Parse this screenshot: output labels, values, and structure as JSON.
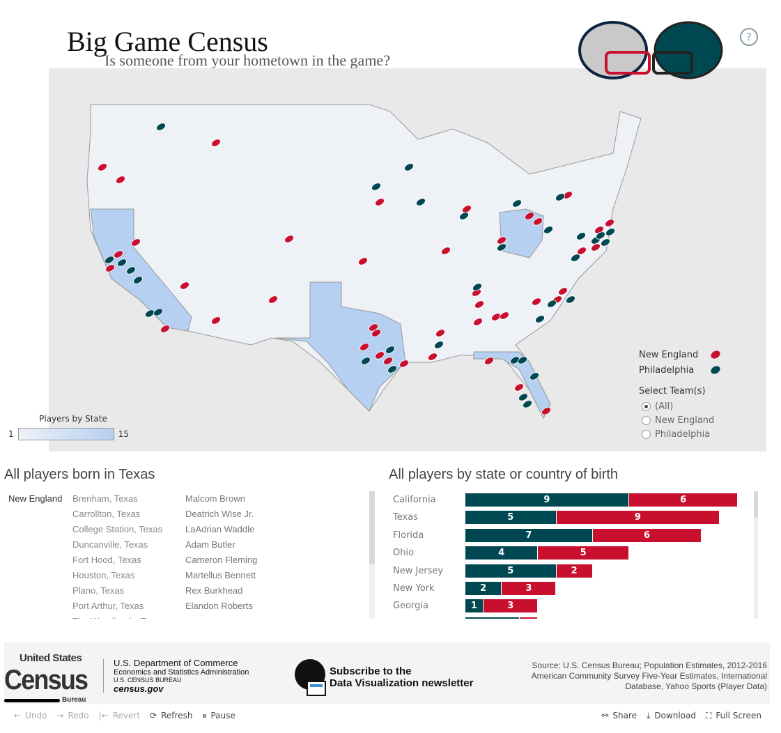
{
  "header": {
    "title": "Big Game Census",
    "subtitle": "Is someone from your hometown in the game?",
    "help_icon": "question-circle-icon"
  },
  "colors": {
    "new_england": "#C8102E",
    "philadelphia": "#004851",
    "state_low": "#eef1f6",
    "state_high": "#b5d0f0",
    "map_bg": "#e9e9e9"
  },
  "map": {
    "legend": {
      "title": "Players by State",
      "min": "1",
      "max": "15"
    },
    "team_legend": [
      {
        "label": "New England",
        "icon": "football-red-icon"
      },
      {
        "label": "Philadelphia",
        "icon": "football-teal-icon"
      }
    ],
    "filter": {
      "title": "Select Team(s)",
      "options": [
        {
          "label": "(All)",
          "selected": true
        },
        {
          "label": "New England",
          "selected": false
        },
        {
          "label": "Philadelphia",
          "selected": false
        }
      ]
    }
  },
  "texas": {
    "title": "All players born in Texas",
    "team": "New England",
    "rows": [
      {
        "town": "Brenham, Texas",
        "player": "Malcom Brown"
      },
      {
        "town": "Carrollton, Texas",
        "player": "Deatrich Wise Jr."
      },
      {
        "town": "College Station, Texas",
        "player": "LaAdrian Waddle"
      },
      {
        "town": "Duncanville, Texas",
        "player": "Adam Butler"
      },
      {
        "town": "Fort Hood, Texas",
        "player": "Cameron Fleming"
      },
      {
        "town": "Houston, Texas",
        "player": "Martellus Bennett"
      },
      {
        "town": "Plano, Texas",
        "player": "Rex Burkhead"
      },
      {
        "town": "Port Arthur, Texas",
        "player": "Elandon Roberts"
      },
      {
        "town": "The Woodlands, Tex...",
        "player": "..."
      }
    ]
  },
  "chart_data": {
    "type": "bar",
    "orientation": "horizontal",
    "stacked": true,
    "title": "All players by state or country of birth",
    "categories": [
      "California",
      "Texas",
      "Florida",
      "Ohio",
      "New Jersey",
      "New York",
      "Georgia",
      ""
    ],
    "series": [
      {
        "team": "philadelphia",
        "values": [
          9,
          5,
          7,
          4,
          5,
          2,
          1,
          3
        ]
      },
      {
        "team": "new_england",
        "values": [
          6,
          9,
          6,
          5,
          2,
          3,
          3,
          1
        ]
      }
    ]
  },
  "footer": {
    "logo": {
      "line1": "United States",
      "line2": "Census",
      "line3": "Bureau"
    },
    "dept": [
      "U.S. Department of Commerce",
      "Economics and Statistics Administration",
      "U.S. CENSUS BUREAU",
      "census.gov"
    ],
    "newsletter": [
      "Subscribe to the",
      "Data Visualization newsletter"
    ],
    "source": [
      "Source: U.S. Census Bureau; Population Estimates, 2012-2016",
      "American Community Survey Five-Year Estimates, International",
      "Database, Yahoo Sports (Player Data)"
    ]
  },
  "toolbar": {
    "undo": "Undo",
    "redo": "Redo",
    "revert": "Revert",
    "refresh": "Refresh",
    "pause": "Pause",
    "share": "Share",
    "download": "Download",
    "fullscreen": "Full Screen"
  }
}
